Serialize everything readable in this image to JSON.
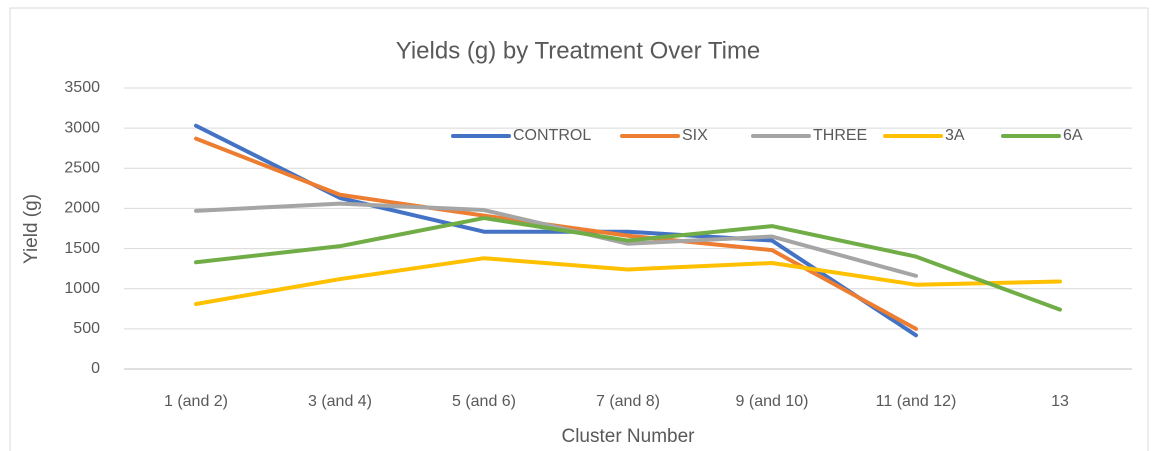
{
  "chart_data": {
    "type": "line",
    "title": "Yields (g) by Treatment Over Time",
    "x_label": "Cluster Number",
    "y_label": "Yield (g)",
    "categories": [
      "1 (and 2)",
      "3 (and 4)",
      "5 (and 6)",
      "7 (and 8)",
      "9 (and 10)",
      "11 (and 12)",
      "13"
    ],
    "series": [
      {
        "name": "CONTROL",
        "color": "#4472c4",
        "values": [
          3030,
          2130,
          1710,
          1710,
          1600,
          420,
          null
        ]
      },
      {
        "name": "SIX",
        "color": "#ed7d31",
        "values": [
          2870,
          2170,
          1910,
          1660,
          1480,
          500,
          null
        ]
      },
      {
        "name": "THREE",
        "color": "#a5a5a5",
        "values": [
          1970,
          2060,
          1980,
          1560,
          1650,
          1160,
          null
        ]
      },
      {
        "name": "3A",
        "color": "#ffc000",
        "values": [
          810,
          1120,
          1380,
          1240,
          1320,
          1050,
          1090
        ]
      },
      {
        "name": "6A",
        "color": "#70ad47",
        "values": [
          1330,
          1530,
          1880,
          1600,
          1780,
          1400,
          740
        ]
      }
    ],
    "ylim": [
      0,
      3500
    ],
    "yticks": [
      0,
      500,
      1000,
      1500,
      2000,
      2500,
      3000,
      3500
    ],
    "grid": true,
    "legend": "top"
  }
}
